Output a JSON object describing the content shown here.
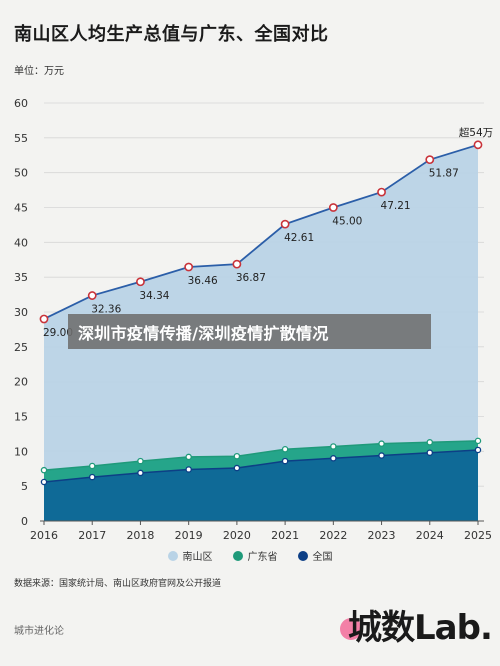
{
  "title": "南山区人均生产总值与广东、全国对比",
  "unit_label": "单位：万元",
  "overlay_text": "深圳市疫情传播/深圳疫情扩散情况",
  "source_text": "数据来源：国家统计局、南山区政府官网及公开报道",
  "footer_brand": "城市进化论",
  "logo_text": "城数Lab.",
  "colors": {
    "nanshan_fill": "#b9d3e6",
    "nanshan_line": "#2b5ea8",
    "nanshan_marker": "#c9333a",
    "guangdong_fill": "#25a58a",
    "guangdong_line": "#1f9a7a",
    "national_fill": "#0f6a97",
    "national_line": "#0d3f86"
  },
  "legend": [
    {
      "name": "南山区",
      "color": "#b9d3e6"
    },
    {
      "name": "广东省",
      "color": "#1f9a7a"
    },
    {
      "name": "全国",
      "color": "#0d3f86"
    }
  ],
  "chart_data": {
    "type": "area",
    "title": "南山区人均生产总值与广东、全国对比",
    "ylabel": "单位：万元",
    "xlabel": "",
    "categories": [
      "2016",
      "2017",
      "2018",
      "2019",
      "2020",
      "2021",
      "2022",
      "2023",
      "2024",
      "2025"
    ],
    "ylim": [
      0,
      60
    ],
    "yticks": [
      0,
      5,
      10,
      15,
      20,
      25,
      30,
      35,
      40,
      45,
      50,
      55,
      60
    ],
    "grid": true,
    "legend_position": "bottom",
    "series": [
      {
        "name": "南山区",
        "values": [
          29.0,
          32.36,
          34.34,
          36.46,
          36.87,
          42.61,
          45.0,
          47.21,
          51.87,
          54.0
        ],
        "labels": [
          "29.00",
          "32.36",
          "34.34",
          "36.46",
          "36.87",
          "42.61",
          "45.00",
          "47.21",
          "51.87",
          "超54万"
        ]
      },
      {
        "name": "广东省",
        "values": [
          7.3,
          7.9,
          8.6,
          9.2,
          9.3,
          10.3,
          10.7,
          11.1,
          11.3,
          11.5
        ]
      },
      {
        "name": "全国",
        "values": [
          5.6,
          6.3,
          6.9,
          7.4,
          7.6,
          8.6,
          9.0,
          9.4,
          9.8,
          10.2
        ]
      }
    ]
  }
}
